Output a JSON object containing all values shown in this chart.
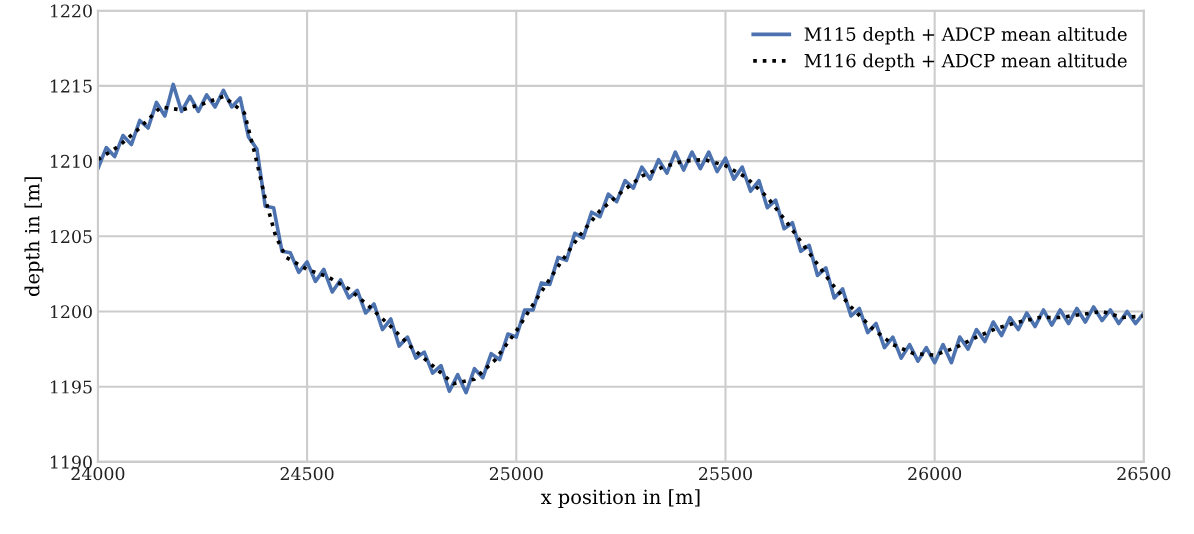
{
  "chart_data": {
    "type": "line",
    "xlabel": "x position in [m]",
    "ylabel": "depth in [m]",
    "xlim": [
      24000,
      26500
    ],
    "xticks": [
      24000,
      24500,
      25000,
      25500,
      26000,
      26500
    ],
    "ylim": [
      1190,
      1220
    ],
    "yticks": [
      1190,
      1195,
      1200,
      1205,
      1210,
      1215,
      1220
    ],
    "grid": true,
    "legend": "top right",
    "series": [
      {
        "name": "M115 depth + ADCP mean altitude",
        "color": "#4c72b0",
        "line_style": "solid",
        "x": [
          24000,
          24020,
          24040,
          24060,
          24080,
          24100,
          24120,
          24140,
          24160,
          24180,
          24200,
          24220,
          24240,
          24260,
          24280,
          24300,
          24320,
          24340,
          24360,
          24380,
          24400,
          24420,
          24440,
          24460,
          24480,
          24500,
          24520,
          24540,
          24560,
          24580,
          24600,
          24620,
          24640,
          24660,
          24680,
          24700,
          24720,
          24740,
          24760,
          24780,
          24800,
          24820,
          24840,
          24860,
          24880,
          24900,
          24920,
          24940,
          24960,
          24980,
          25000,
          25020,
          25040,
          25060,
          25080,
          25100,
          25120,
          25140,
          25160,
          25180,
          25200,
          25220,
          25240,
          25260,
          25280,
          25300,
          25320,
          25340,
          25360,
          25380,
          25400,
          25420,
          25440,
          25460,
          25480,
          25500,
          25520,
          25540,
          25560,
          25580,
          25600,
          25620,
          25640,
          25660,
          25680,
          25700,
          25720,
          25740,
          25760,
          25780,
          25800,
          25820,
          25840,
          25860,
          25880,
          25900,
          25920,
          25940,
          25960,
          25980,
          26000,
          26020,
          26040,
          26060,
          26080,
          26100,
          26120,
          26140,
          26160,
          26180,
          26200,
          26220,
          26240,
          26260,
          26280,
          26300,
          26320,
          26340,
          26360,
          26380,
          26400,
          26420,
          26440,
          26460,
          26480,
          26500
        ],
        "values": [
          1209.5,
          1210.9,
          1210.3,
          1211.7,
          1211.1,
          1212.7,
          1212.2,
          1213.9,
          1213.0,
          1215.1,
          1213.3,
          1214.3,
          1213.3,
          1214.4,
          1213.6,
          1214.7,
          1213.6,
          1214.2,
          1211.6,
          1210.8,
          1207.0,
          1206.9,
          1204.0,
          1203.9,
          1202.6,
          1203.3,
          1202.0,
          1202.8,
          1201.3,
          1202.1,
          1200.9,
          1201.4,
          1199.9,
          1200.5,
          1198.8,
          1199.5,
          1197.7,
          1198.3,
          1196.9,
          1197.3,
          1195.9,
          1196.4,
          1194.7,
          1195.8,
          1194.6,
          1196.2,
          1195.6,
          1197.2,
          1196.8,
          1198.5,
          1198.3,
          1200.1,
          1200.1,
          1201.9,
          1201.8,
          1203.6,
          1203.4,
          1205.2,
          1204.9,
          1206.6,
          1206.3,
          1207.8,
          1207.3,
          1208.7,
          1208.2,
          1209.6,
          1208.8,
          1210.1,
          1209.2,
          1210.6,
          1209.4,
          1210.6,
          1209.5,
          1210.6,
          1209.3,
          1210.2,
          1208.8,
          1209.6,
          1208.0,
          1208.7,
          1206.9,
          1207.4,
          1205.5,
          1205.9,
          1204.0,
          1204.4,
          1202.4,
          1202.9,
          1200.9,
          1201.5,
          1199.7,
          1200.2,
          1198.6,
          1199.2,
          1197.6,
          1198.3,
          1196.9,
          1197.8,
          1196.7,
          1197.6,
          1196.6,
          1197.8,
          1196.6,
          1198.3,
          1197.5,
          1198.8,
          1198.0,
          1199.3,
          1198.4,
          1199.6,
          1198.8,
          1199.9,
          1199.0,
          1200.1,
          1199.1,
          1200.1,
          1199.2,
          1200.2,
          1199.3,
          1200.3,
          1199.4,
          1200.1,
          1199.2,
          1200.0,
          1199.2,
          1199.9
        ]
      },
      {
        "name": "M116 depth + ADCP mean altitude",
        "color": "#000000",
        "line_style": "dotted",
        "x": [
          24000,
          24050,
          24100,
          24150,
          24200,
          24250,
          24300,
          24350,
          24375,
          24400,
          24425,
          24450,
          24500,
          24550,
          24600,
          24650,
          24700,
          24750,
          24800,
          24850,
          24900,
          24950,
          25000,
          25050,
          25100,
          25150,
          25200,
          25250,
          25300,
          25350,
          25400,
          25450,
          25500,
          25550,
          25600,
          25650,
          25700,
          25750,
          25800,
          25850,
          25900,
          25950,
          26000,
          26050,
          26100,
          26150,
          26200,
          26250,
          26300,
          26350,
          26400,
          26450,
          26500
        ],
        "values": [
          1210.1,
          1211.0,
          1212.2,
          1213.6,
          1213.4,
          1213.8,
          1214.3,
          1213.2,
          1210.5,
          1207.5,
          1205.0,
          1203.6,
          1202.8,
          1202.3,
          1201.5,
          1200.3,
          1199.0,
          1197.6,
          1196.4,
          1195.2,
          1195.5,
          1196.8,
          1198.7,
          1200.9,
          1203.0,
          1205.0,
          1206.7,
          1207.9,
          1209.0,
          1209.6,
          1210.0,
          1210.1,
          1209.7,
          1208.9,
          1207.6,
          1205.8,
          1203.9,
          1202.0,
          1200.3,
          1198.9,
          1197.8,
          1197.2,
          1197.1,
          1197.6,
          1198.3,
          1198.9,
          1199.3,
          1199.6,
          1199.6,
          1199.8,
          1200.0,
          1199.6,
          1199.7
        ]
      }
    ]
  }
}
